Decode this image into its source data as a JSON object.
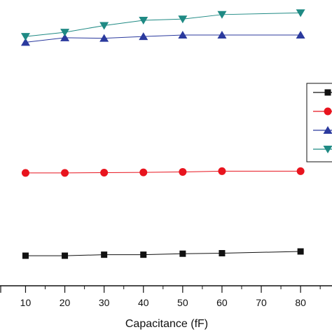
{
  "chart_data": {
    "type": "line",
    "title": "",
    "xlabel": "Capacitance (fF)",
    "ylabel": "",
    "x": [
      10,
      20,
      30,
      40,
      50,
      60,
      70,
      80
    ],
    "xticks": [
      "10",
      "20",
      "30",
      "40",
      "50",
      "60",
      "70",
      "80"
    ],
    "xlim": [
      3.5,
      88
    ],
    "ylim": [
      0,
      100
    ],
    "grid": false,
    "legend": "right",
    "series": [
      {
        "marker": "square",
        "color": "#111111",
        "x": [
          10,
          20,
          30,
          40,
          50,
          60,
          80
        ],
        "values": [
          5.6,
          5.6,
          6.0,
          6.0,
          6.4,
          6.6,
          7.3
        ]
      },
      {
        "marker": "circle",
        "color": "#e8141e",
        "x": [
          10,
          20,
          30,
          40,
          50,
          60,
          80
        ],
        "values": [
          38.8,
          38.8,
          38.9,
          39.0,
          39.2,
          39.5,
          39.5
        ]
      },
      {
        "marker": "triangle-up",
        "color": "#2b3a9e",
        "x": [
          10,
          20,
          30,
          40,
          50,
          60,
          80
        ],
        "values": [
          91.2,
          93.0,
          92.8,
          93.5,
          94.1,
          94.1,
          94.1
        ]
      },
      {
        "marker": "triangle-down",
        "color": "#1f8a84",
        "x": [
          10,
          20,
          30,
          40,
          50,
          60,
          80
        ],
        "values": [
          93.5,
          95.2,
          97.9,
          100.0,
          100.5,
          102.3,
          103.0
        ]
      }
    ]
  }
}
